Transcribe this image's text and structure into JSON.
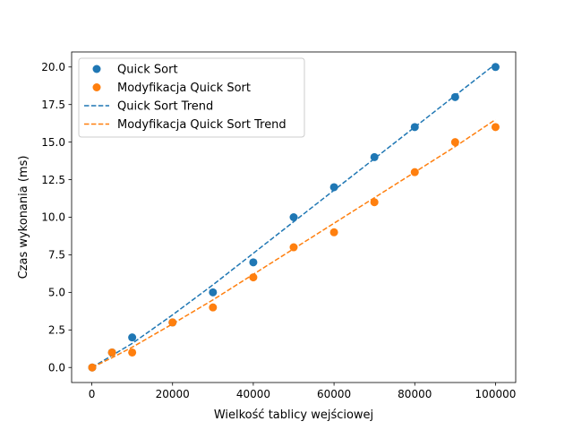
{
  "chart_data": {
    "type": "scatter",
    "xlabel": "Wielkość tablicy wejściowej",
    "ylabel": "Czas wykonania (ms)",
    "xlim": [
      -5000,
      105000
    ],
    "ylim": [
      -1.0,
      21.0
    ],
    "x_ticks": [
      0,
      20000,
      40000,
      60000,
      80000,
      100000
    ],
    "x_tick_labels": [
      "0",
      "20000",
      "40000",
      "60000",
      "80000",
      "100000"
    ],
    "y_ticks": [
      0.0,
      2.5,
      5.0,
      7.5,
      10.0,
      12.5,
      15.0,
      17.5,
      20.0
    ],
    "y_tick_labels": [
      "0.0",
      "2.5",
      "5.0",
      "7.5",
      "10.0",
      "12.5",
      "15.0",
      "17.5",
      "20.0"
    ],
    "grid": false,
    "legend_position": "top-left",
    "series": [
      {
        "name": "Quick Sort",
        "kind": "scatter",
        "color": "#1f77b4",
        "x": [
          100,
          5000,
          10000,
          20000,
          30000,
          40000,
          50000,
          60000,
          70000,
          80000,
          90000,
          100000
        ],
        "y": [
          0,
          1,
          2,
          3,
          5,
          7,
          10,
          12,
          14,
          16,
          18,
          20
        ]
      },
      {
        "name": "Modyfikacja Quick Sort",
        "kind": "scatter",
        "color": "#ff7f0e",
        "x": [
          100,
          5000,
          10000,
          20000,
          30000,
          40000,
          50000,
          60000,
          70000,
          80000,
          90000,
          100000
        ],
        "y": [
          0,
          1,
          1,
          3,
          4,
          6,
          8,
          9,
          11,
          13,
          15,
          16
        ]
      },
      {
        "name": "Quick Sort Trend",
        "kind": "dashed-line",
        "color": "#1f77b4",
        "x": [
          0,
          5000,
          10000,
          20000,
          30000,
          40000,
          50000,
          60000,
          70000,
          80000,
          90000,
          100000
        ],
        "y": [
          0.0,
          0.8,
          1.6,
          3.5,
          5.5,
          7.6,
          9.7,
          11.8,
          13.9,
          16.0,
          18.1,
          20.2
        ]
      },
      {
        "name": "Modyfikacja Quick Sort Trend",
        "kind": "dashed-line",
        "color": "#ff7f0e",
        "x": [
          0,
          5000,
          10000,
          20000,
          30000,
          40000,
          50000,
          60000,
          70000,
          80000,
          90000,
          100000
        ],
        "y": [
          0.0,
          0.65,
          1.35,
          2.9,
          4.5,
          6.2,
          7.9,
          9.6,
          11.3,
          13.0,
          14.7,
          16.5
        ]
      }
    ]
  }
}
